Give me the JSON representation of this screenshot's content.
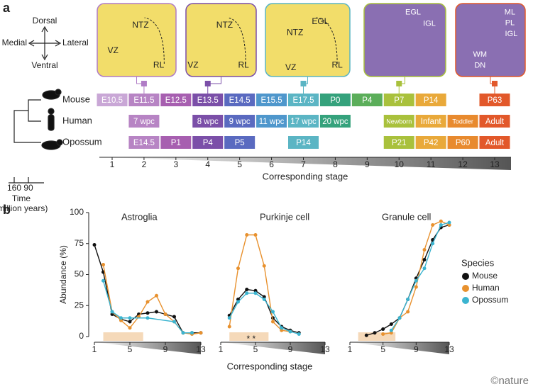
{
  "panel_a": {
    "label": "a",
    "compass": {
      "top": "Dorsal",
      "bottom": "Ventral",
      "left": "Medial",
      "right": "Lateral"
    },
    "images": [
      {
        "stage": 2,
        "border": "#b07cc6",
        "labels": [
          "NTZ",
          "VZ",
          "RL"
        ]
      },
      {
        "stage": 4,
        "border": "#7b4fa8",
        "labels": [
          "NTZ",
          "VZ",
          "RL"
        ]
      },
      {
        "stage": 7,
        "border": "#5bb5c4",
        "labels": [
          "EGL",
          "NTZ",
          "VZ",
          "RL"
        ]
      },
      {
        "stage": 10,
        "border": "#a9c13c",
        "labels": [
          "EGL",
          "IGL"
        ]
      },
      {
        "stage": 13,
        "border": "#e2582a",
        "labels": [
          "ML",
          "PL",
          "IGL",
          "WM",
          "DN"
        ]
      }
    ],
    "stage_colors": [
      "#c9a7d6",
      "#b784c4",
      "#a75fb0",
      "#7b4fa8",
      "#5a6ac0",
      "#4f97cc",
      "#5bb5c4",
      "#35a27c",
      "#5bae5a",
      "#a9c13c",
      "#e9a93a",
      "#e88a2e",
      "#e2582a"
    ],
    "rows": [
      {
        "species": "Mouse",
        "cells": [
          "E10.5",
          "E11.5",
          "E12.5",
          "E13.5",
          "E14.5",
          "E15.5",
          "E17.5",
          "P0",
          "P4",
          "P7",
          "P14",
          null,
          "P63"
        ]
      },
      {
        "species": "Human",
        "cells": [
          null,
          "7 wpc",
          null,
          "8 wpc",
          "9 wpc",
          "11 wpc",
          "17 wpc",
          "20 wpc",
          null,
          "Newborn",
          "Infant",
          "Toddler",
          "Adult"
        ]
      },
      {
        "species": "Opossum",
        "cells": [
          null,
          "E14.5",
          "P1",
          "P4",
          "P5",
          null,
          "P14",
          null,
          null,
          "P21",
          "P42",
          "P60",
          "Adult"
        ]
      }
    ],
    "stage_ticks": [
      1,
      2,
      3,
      4,
      5,
      6,
      7,
      8,
      9,
      10,
      11,
      12,
      13
    ],
    "stage_label": "Corresponding stage",
    "time_ticks": [
      160,
      90
    ],
    "time_label": "Time",
    "time_unit": "(million years)"
  },
  "panel_b_label": "b",
  "credit": "©nature",
  "chart_data": [
    {
      "type": "line",
      "title": "Astroglia",
      "ylabel": "Abundance (%)",
      "xlim": [
        1,
        13
      ],
      "xticks": [
        1,
        5,
        9,
        13
      ],
      "ylim": [
        0,
        100
      ],
      "yticks": [
        0,
        25,
        50,
        75,
        100
      ],
      "series": [
        {
          "color": "#111111",
          "x": [
            1,
            2,
            3,
            4,
            5,
            6,
            7,
            8,
            9,
            10,
            11,
            12,
            13
          ],
          "values": [
            74,
            52,
            18,
            14,
            12,
            18,
            19,
            20,
            18,
            16,
            3,
            3,
            3
          ]
        },
        {
          "color": "#e8912e",
          "x": [
            2,
            3,
            4,
            5,
            6,
            7,
            8,
            9,
            10,
            11,
            12,
            13
          ],
          "values": [
            58,
            20,
            13,
            7,
            16,
            28,
            33,
            18,
            12,
            3,
            2,
            3
          ]
        },
        {
          "color": "#3bb4d0",
          "x": [
            2,
            3,
            4,
            5,
            7,
            10,
            11,
            12
          ],
          "values": [
            45,
            20,
            15,
            15,
            15,
            12,
            3,
            3
          ]
        }
      ]
    },
    {
      "type": "line",
      "title": "Purkinje cell",
      "xlabel": "Corresponding stage",
      "annotation": "* *",
      "xlim": [
        1,
        13
      ],
      "xticks": [
        1,
        5,
        9,
        13
      ],
      "ylim": [
        0,
        100
      ],
      "series": [
        {
          "color": "#111111",
          "x": [
            2,
            3,
            4,
            5,
            6,
            7,
            8,
            9,
            10
          ],
          "values": [
            17,
            30,
            38,
            37,
            32,
            15,
            8,
            5,
            3
          ]
        },
        {
          "color": "#e8912e",
          "x": [
            2,
            3,
            4,
            5,
            6,
            7,
            8,
            9
          ],
          "values": [
            8,
            55,
            82,
            82,
            57,
            12,
            5,
            4
          ]
        },
        {
          "color": "#3bb4d0",
          "x": [
            2,
            3,
            4,
            5,
            6,
            7,
            8,
            9,
            10
          ],
          "values": [
            15,
            28,
            35,
            35,
            30,
            20,
            7,
            4,
            2
          ]
        }
      ]
    },
    {
      "type": "line",
      "title": "Granule cell",
      "legend_title": "Species",
      "xlim": [
        1,
        13
      ],
      "xticks": [
        1,
        5,
        9,
        13
      ],
      "ylim": [
        0,
        100
      ],
      "series": [
        {
          "name": "Mouse",
          "color": "#111111",
          "x": [
            3,
            4,
            5,
            6,
            7,
            8,
            9,
            10,
            11,
            12,
            13
          ],
          "values": [
            1,
            3,
            6,
            10,
            15,
            30,
            47,
            62,
            78,
            88,
            90
          ]
        },
        {
          "name": "Human",
          "color": "#e8912e",
          "x": [
            5,
            6,
            7,
            8,
            9,
            10,
            11,
            12,
            13
          ],
          "values": [
            2,
            3,
            15,
            20,
            40,
            70,
            90,
            93,
            90
          ]
        },
        {
          "name": "Opossum",
          "color": "#3bb4d0",
          "x": [
            6,
            7,
            8,
            9,
            10,
            11,
            12,
            13
          ],
          "values": [
            5,
            15,
            30,
            45,
            55,
            75,
            90,
            92
          ]
        }
      ]
    }
  ]
}
